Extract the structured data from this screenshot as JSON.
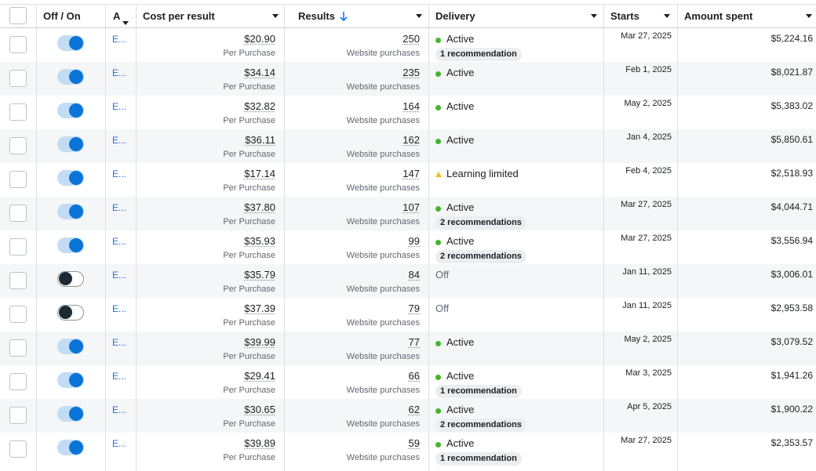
{
  "header": {
    "offon": "Off / On",
    "ad": "A",
    "cost": "Cost per result",
    "results": "Results",
    "results_sort_icon": "arrow-down",
    "delivery": "Delivery",
    "starts": "Starts",
    "amount": "Amount spent"
  },
  "colors": {
    "toggle_on": "#0a74d9",
    "active_dot": "#42b72a",
    "learning_triangle": "#f7b928",
    "link": "#216fdb"
  },
  "rows": [
    {
      "toggle": "on",
      "ad": "E...",
      "cost": "$20.90",
      "cost_sub": "Per Purchase",
      "results": "250",
      "results_sub": "Website purchases",
      "delivery": "Active",
      "status": "active",
      "rec": "1 recommendation",
      "starts": "Mar 27, 2025",
      "amount": "$5,224.16"
    },
    {
      "toggle": "on",
      "ad": "E...",
      "cost": "$34.14",
      "cost_sub": "Per Purchase",
      "results": "235",
      "results_sub": "Website purchases",
      "delivery": "Active",
      "status": "active",
      "rec": "",
      "starts": "Feb 1, 2025",
      "amount": "$8,021.87"
    },
    {
      "toggle": "on",
      "ad": "E...",
      "cost": "$32.82",
      "cost_sub": "Per Purchase",
      "results": "164",
      "results_sub": "Website purchases",
      "delivery": "Active",
      "status": "active",
      "rec": "",
      "starts": "May 2, 2025",
      "amount": "$5,383.02"
    },
    {
      "toggle": "on",
      "ad": "E...",
      "cost": "$36.11",
      "cost_sub": "Per Purchase",
      "results": "162",
      "results_sub": "Website purchases",
      "delivery": "Active",
      "status": "active",
      "rec": "",
      "starts": "Jan 4, 2025",
      "amount": "$5,850.61"
    },
    {
      "toggle": "on",
      "ad": "E...",
      "cost": "$17.14",
      "cost_sub": "Per Purchase",
      "results": "147",
      "results_sub": "Website purchases",
      "delivery": "Learning limited",
      "status": "learning",
      "rec": "",
      "starts": "Feb 4, 2025",
      "amount": "$2,518.93"
    },
    {
      "toggle": "on",
      "ad": "E...",
      "cost": "$37.80",
      "cost_sub": "Per Purchase",
      "results": "107",
      "results_sub": "Website purchases",
      "delivery": "Active",
      "status": "active",
      "rec": "2 recommendations",
      "starts": "Mar 27, 2025",
      "amount": "$4,044.71"
    },
    {
      "toggle": "on",
      "ad": "E...",
      "cost": "$35.93",
      "cost_sub": "Per Purchase",
      "results": "99",
      "results_sub": "Website purchases",
      "delivery": "Active",
      "status": "active",
      "rec": "2 recommendations",
      "starts": "Mar 27, 2025",
      "amount": "$3,556.94"
    },
    {
      "toggle": "off",
      "ad": "E...",
      "cost": "$35.79",
      "cost_sub": "Per Purchase",
      "results": "84",
      "results_sub": "Website purchases",
      "delivery": "Off",
      "status": "off",
      "rec": "",
      "starts": "Jan 11, 2025",
      "amount": "$3,006.01"
    },
    {
      "toggle": "off",
      "ad": "E...",
      "cost": "$37.39",
      "cost_sub": "Per Purchase",
      "results": "79",
      "results_sub": "Website purchases",
      "delivery": "Off",
      "status": "off",
      "rec": "",
      "starts": "Jan 11, 2025",
      "amount": "$2,953.58"
    },
    {
      "toggle": "on",
      "ad": "E...",
      "cost": "$39.99",
      "cost_sub": "Per Purchase",
      "results": "77",
      "results_sub": "Website purchases",
      "delivery": "Active",
      "status": "active",
      "rec": "",
      "starts": "May 2, 2025",
      "amount": "$3,079.52"
    },
    {
      "toggle": "on",
      "ad": "E...",
      "cost": "$29.41",
      "cost_sub": "Per Purchase",
      "results": "66",
      "results_sub": "Website purchases",
      "delivery": "Active",
      "status": "active",
      "rec": "1 recommendation",
      "starts": "Mar 3, 2025",
      "amount": "$1,941.26"
    },
    {
      "toggle": "on",
      "ad": "E...",
      "cost": "$30.65",
      "cost_sub": "Per Purchase",
      "results": "62",
      "results_sub": "Website purchases",
      "delivery": "Active",
      "status": "active",
      "rec": "2 recommendations",
      "starts": "Apr 5, 2025",
      "amount": "$1,900.22"
    },
    {
      "toggle": "on",
      "ad": "E...",
      "cost": "$39.89",
      "cost_sub": "Per Purchase",
      "results": "59",
      "results_sub": "Website purchases",
      "delivery": "Active",
      "status": "active",
      "rec": "1 recommendation",
      "starts": "Mar 27, 2025",
      "amount": "$2,353.57"
    }
  ]
}
